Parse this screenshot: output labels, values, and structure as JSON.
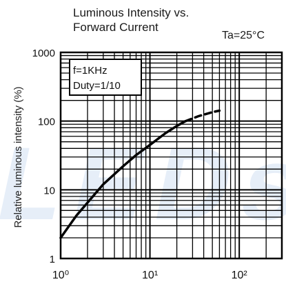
{
  "chart_data": {
    "type": "line",
    "title_lines": [
      "Luminous Intensity vs.",
      "Forward Current"
    ],
    "condition": "Ta=25°C",
    "ylabel": "Relative luminous intensity  (%)",
    "xlabel": "",
    "x_scale": "log",
    "y_scale": "log",
    "xlim": [
      1,
      300
    ],
    "ylim": [
      1,
      1000
    ],
    "x_ticks": [
      {
        "value": 1,
        "label": "10⁰"
      },
      {
        "value": 10,
        "label": "10¹"
      },
      {
        "value": 100,
        "label": "10²"
      }
    ],
    "y_ticks": [
      {
        "value": 1,
        "label": "1"
      },
      {
        "value": 10,
        "label": "10"
      },
      {
        "value": 100,
        "label": "100"
      },
      {
        "value": 1000,
        "label": "1000"
      }
    ],
    "grid": true,
    "annotation": [
      "f=1KHz",
      "Duty=1/10"
    ],
    "series": [
      {
        "style": "solid",
        "x": [
          1,
          1.5,
          2,
          3,
          5,
          7,
          10,
          15,
          20,
          25
        ],
        "y": [
          2,
          4.2,
          6.5,
          12,
          22,
          32,
          45,
          67,
          85,
          100
        ]
      },
      {
        "style": "dashed",
        "x": [
          25,
          35,
          50,
          60
        ],
        "y": [
          100,
          118,
          135,
          142
        ]
      }
    ]
  },
  "watermark_text": "LEDs"
}
